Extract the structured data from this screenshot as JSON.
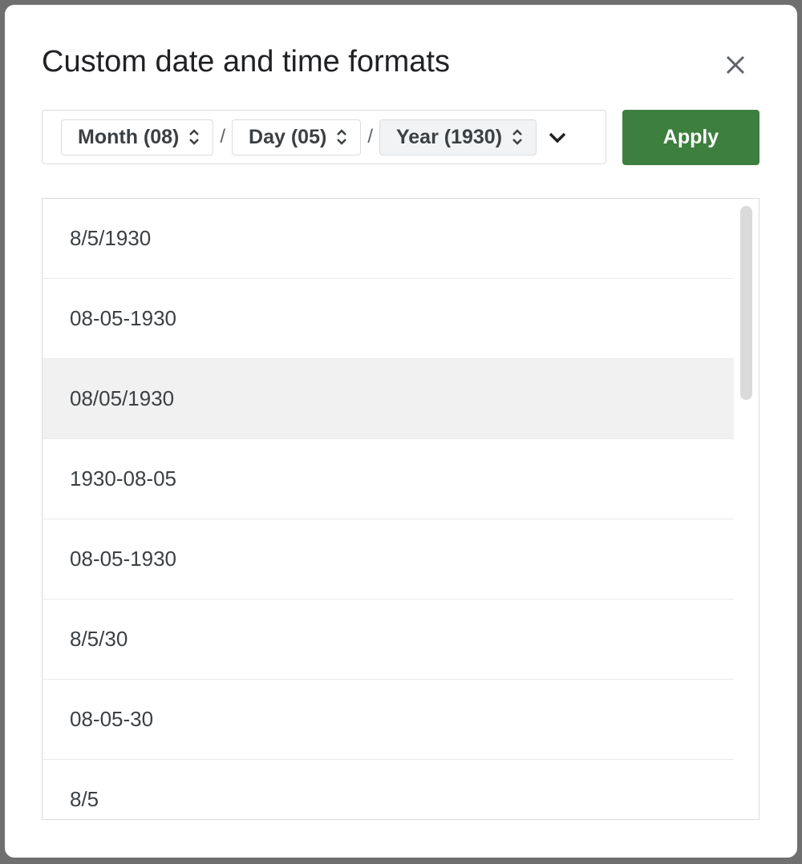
{
  "dialog": {
    "title": "Custom date and time formats",
    "format_parts": [
      {
        "label": "Month (08)",
        "separator": "/"
      },
      {
        "label": "Day (05)",
        "separator": "/"
      },
      {
        "label": "Year (1930)"
      }
    ],
    "apply_button": "Apply",
    "formats": [
      "8/5/1930",
      "08-05-1930",
      "08/05/1930",
      "1930-08-05",
      "08-05-1930",
      "8/5/30",
      "08-05-30",
      "8/5"
    ]
  }
}
